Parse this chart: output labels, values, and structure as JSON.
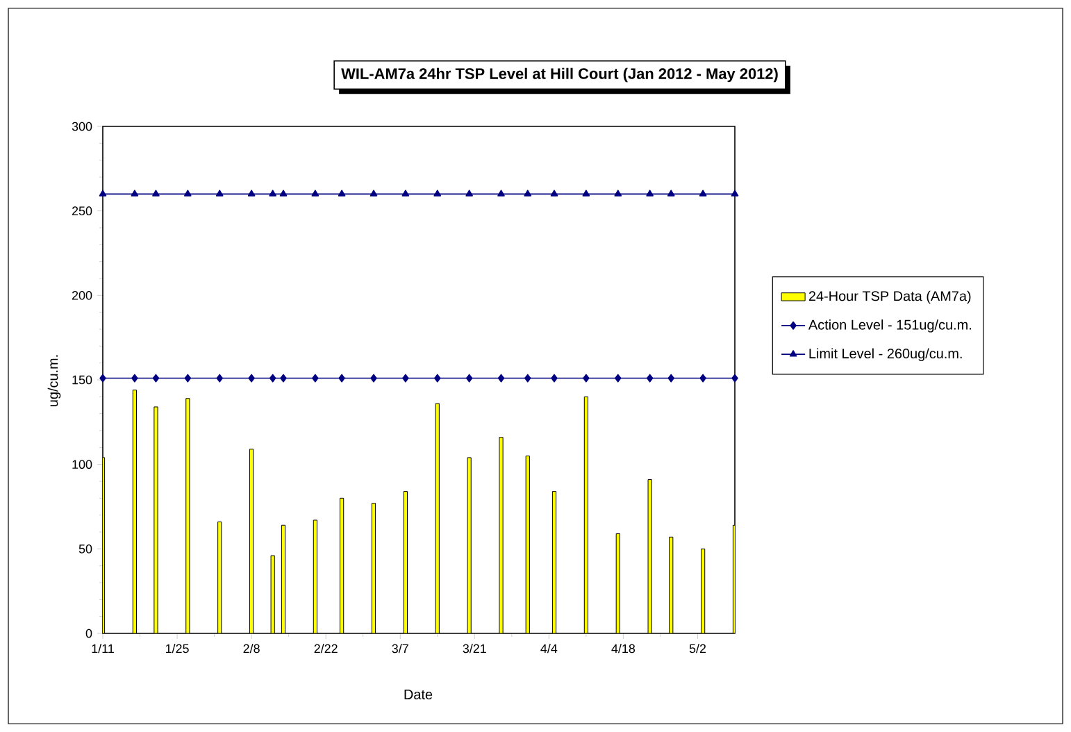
{
  "chart_data": {
    "type": "bar",
    "title": "WIL-AM7a 24hr TSP Level at Hill Court (Jan 2012 - May 2012)",
    "xlabel": "Date",
    "ylabel": "ug/cu.m.",
    "x": [
      "2012-01-11",
      "2012-01-17",
      "2012-01-21",
      "2012-01-27",
      "2012-02-02",
      "2012-02-08",
      "2012-02-12",
      "2012-02-14",
      "2012-02-20",
      "2012-02-25",
      "2012-03-02",
      "2012-03-08",
      "2012-03-14",
      "2012-03-20",
      "2012-03-26",
      "2012-03-31",
      "2012-04-05",
      "2012-04-11",
      "2012-04-17",
      "2012-04-23",
      "2012-04-27",
      "2012-05-03",
      "2012-05-09"
    ],
    "series": [
      {
        "name": "24-Hour TSP Data (AM7a)",
        "color": "#ffff00",
        "values": [
          104,
          144,
          134,
          139,
          66,
          109,
          46,
          64,
          67,
          80,
          77,
          84,
          136,
          104,
          116,
          105,
          84,
          140,
          59,
          91,
          57,
          50,
          64
        ]
      },
      {
        "name": "Action Level - 151ug/cu.m.",
        "type": "line",
        "color": "#000080",
        "marker": "diamond",
        "values": [
          151,
          151,
          151,
          151,
          151,
          151,
          151,
          151,
          151,
          151,
          151,
          151,
          151,
          151,
          151,
          151,
          151,
          151,
          151,
          151,
          151,
          151,
          151
        ]
      },
      {
        "name": "Limit Level - 260ug/cu.m.",
        "type": "line",
        "color": "#000080",
        "marker": "triangle",
        "values": [
          260,
          260,
          260,
          260,
          260,
          260,
          260,
          260,
          260,
          260,
          260,
          260,
          260,
          260,
          260,
          260,
          260,
          260,
          260,
          260,
          260,
          260,
          260
        ]
      }
    ],
    "xlim": [
      "2012-01-11",
      "2012-05-09"
    ],
    "xticks": [
      {
        "value": "2012-01-11",
        "label": "1/11"
      },
      {
        "value": "2012-01-25",
        "label": "1/25"
      },
      {
        "value": "2012-02-08",
        "label": "2/8"
      },
      {
        "value": "2012-02-22",
        "label": "2/22"
      },
      {
        "value": "2012-03-07",
        "label": "3/7"
      },
      {
        "value": "2012-03-21",
        "label": "3/21"
      },
      {
        "value": "2012-04-04",
        "label": "4/4"
      },
      {
        "value": "2012-04-18",
        "label": "4/18"
      },
      {
        "value": "2012-05-02",
        "label": "5/2"
      }
    ],
    "ylim": [
      0,
      300
    ],
    "yticks": [
      0,
      50,
      100,
      150,
      200,
      250,
      300
    ],
    "grid": false,
    "legend": "right"
  }
}
